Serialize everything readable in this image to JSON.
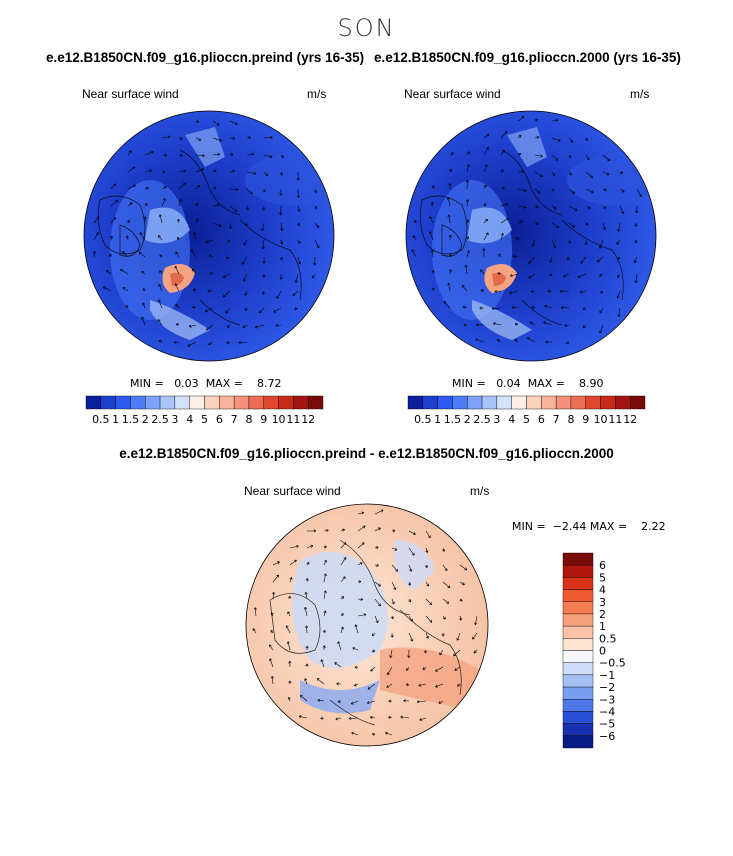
{
  "season": "SON",
  "panels": {
    "left": {
      "title": "e.e12.B1850CN.f09_g16.plioccn.preind (yrs 16-35)",
      "variable": "Near surface wind",
      "units": "m/s",
      "min_label": "MIN =",
      "min": "0.03",
      "max_label": "MAX =",
      "max": "8.72"
    },
    "right": {
      "title": "e.e12.B1850CN.f09_g16.plioccn.2000 (yrs 16-35)",
      "variable": "Near surface wind",
      "units": "m/s",
      "min_label": "MIN =",
      "min": "0.04",
      "max_label": "MAX =",
      "max": "8.90"
    },
    "diff": {
      "title": "e.e12.B1850CN.f09_g16.plioccn.preind - e.e12.B1850CN.f09_g16.plioccn.2000",
      "variable": "Near surface wind",
      "units": "m/s",
      "min_label": "MIN =",
      "min": "−2.44",
      "max_label": "MAX =",
      "max": "2.22"
    }
  },
  "chart_data": [
    {
      "type": "heatmap",
      "projection": "polar-stereographic",
      "panel": "left",
      "colorbar": {
        "orientation": "horizontal",
        "labels": [
          "0.5",
          "1",
          "1.5",
          "2",
          "2.5",
          "3",
          "4",
          "5",
          "6",
          "7",
          "8",
          "9",
          "10",
          "11",
          "12"
        ],
        "colors": [
          "#0a1f9c",
          "#1c3fd0",
          "#2d5bf0",
          "#4d7cf6",
          "#7da2fa",
          "#a9c4f8",
          "#d3e2f8",
          "#fdf0e6",
          "#fbd3bd",
          "#f7b49a",
          "#f3917a",
          "#ec6d55",
          "#e0472f",
          "#c82a1a",
          "#a31412",
          "#7a0a08"
        ]
      },
      "min": 0.03,
      "max": 8.72
    },
    {
      "type": "heatmap",
      "projection": "polar-stereographic",
      "panel": "right",
      "colorbar": {
        "orientation": "horizontal",
        "labels": [
          "0.5",
          "1",
          "1.5",
          "2",
          "2.5",
          "3",
          "4",
          "5",
          "6",
          "7",
          "8",
          "9",
          "10",
          "11",
          "12"
        ],
        "colors": [
          "#0a1f9c",
          "#1c3fd0",
          "#2d5bf0",
          "#4d7cf6",
          "#7da2fa",
          "#a9c4f8",
          "#d3e2f8",
          "#fdf0e6",
          "#fbd3bd",
          "#f7b49a",
          "#f3917a",
          "#ec6d55",
          "#e0472f",
          "#c82a1a",
          "#a31412",
          "#7a0a08"
        ]
      },
      "min": 0.04,
      "max": 8.9
    },
    {
      "type": "heatmap",
      "projection": "polar-stereographic",
      "panel": "diff",
      "colorbar": {
        "orientation": "vertical",
        "labels": [
          "6",
          "5",
          "4",
          "3",
          "2",
          "1",
          "0.5",
          "0",
          "−0.5",
          "−1",
          "−2",
          "−3",
          "−4",
          "−5",
          "−6"
        ],
        "colors": [
          "#7a0a08",
          "#b0170e",
          "#d9331a",
          "#ef5a30",
          "#f47d52",
          "#f8a27c",
          "#fac3a6",
          "#fde3d2",
          "#f6f7fb",
          "#cfdcf8",
          "#a6c0f6",
          "#7a9ff2",
          "#4e78ea",
          "#2a4fd4",
          "#1630b0",
          "#0a1a86"
        ]
      },
      "min": -2.44,
      "max": 2.22
    }
  ]
}
